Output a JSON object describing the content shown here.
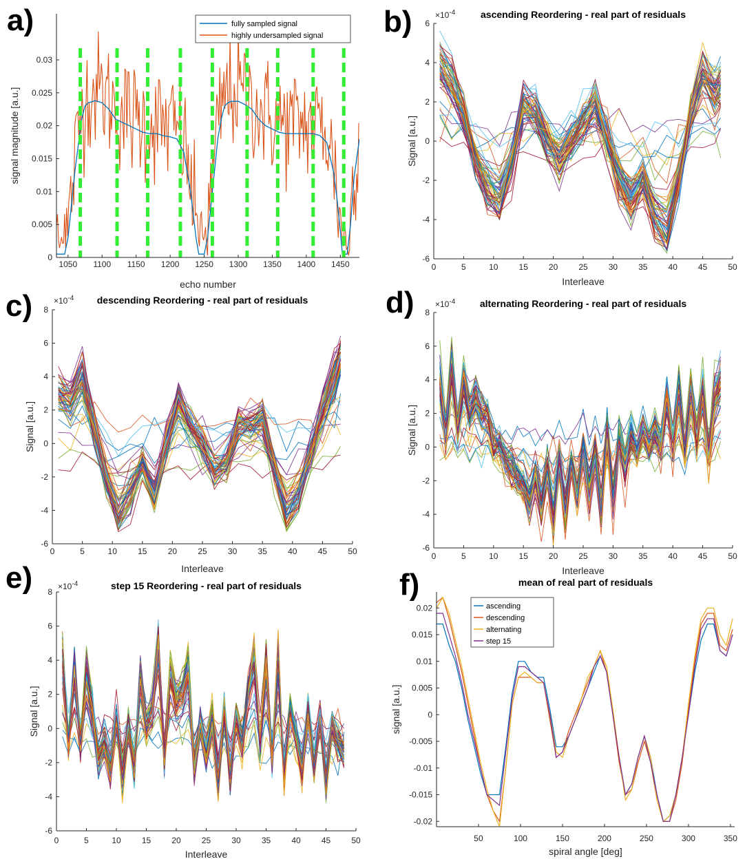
{
  "figure": {
    "panel_labels": [
      "a)",
      "b)",
      "c)",
      "d)",
      "e)",
      "f)"
    ]
  },
  "chart_data": [
    {
      "panel": "a)",
      "type": "line",
      "title": "",
      "xlabel": "echo number",
      "ylabel": "signal magnitude [a.u.]",
      "xlim": [
        1033,
        1478
      ],
      "ylim": [
        0,
        0.037
      ],
      "xticks": [
        1050,
        1100,
        1150,
        1200,
        1250,
        1300,
        1350,
        1400,
        1450
      ],
      "yticks": [
        0,
        0.005,
        0.01,
        0.015,
        0.02,
        0.025,
        0.03
      ],
      "ytick_labels": [
        "0",
        "0.005",
        "0.01",
        "0.015",
        "0.02",
        "0.025",
        "0.03"
      ],
      "legend": [
        "fully sampled signal",
        "highly undersampled signal"
      ],
      "legend_position": "top-right",
      "series": [
        {
          "name": "fully sampled signal",
          "color": "#0072BD",
          "x": [
            1033,
            1040,
            1045,
            1050,
            1055,
            1060,
            1065,
            1070,
            1075,
            1080,
            1090,
            1100,
            1110,
            1120,
            1130,
            1140,
            1150,
            1160,
            1170,
            1180,
            1190,
            1200,
            1210,
            1220,
            1230,
            1238,
            1242,
            1250,
            1255,
            1260,
            1265,
            1270,
            1275,
            1280,
            1285,
            1290,
            1300,
            1310,
            1320,
            1330,
            1340,
            1350,
            1360,
            1370,
            1380,
            1390,
            1400,
            1410,
            1420,
            1430,
            1440,
            1445,
            1450,
            1453,
            1460,
            1465,
            1470,
            1478
          ],
          "y": [
            0.0005,
            0.0005,
            0.0005,
            0.003,
            0.008,
            0.013,
            0.017,
            0.021,
            0.023,
            0.0235,
            0.0238,
            0.0235,
            0.0225,
            0.021,
            0.0205,
            0.02,
            0.0195,
            0.019,
            0.0188,
            0.0188,
            0.0185,
            0.0183,
            0.018,
            0.016,
            0.01,
            0.003,
            0.0005,
            0.0005,
            0.003,
            0.008,
            0.013,
            0.018,
            0.021,
            0.023,
            0.0235,
            0.0237,
            0.0237,
            0.0232,
            0.0225,
            0.021,
            0.02,
            0.0195,
            0.019,
            0.0188,
            0.0188,
            0.0188,
            0.0188,
            0.0188,
            0.0185,
            0.0175,
            0.013,
            0.009,
            0.004,
            0.0005,
            0.0005,
            0.005,
            0.012,
            0.018
          ]
        },
        {
          "name": "highly undersampled signal",
          "color": "#D95319",
          "noisy": true,
          "x": [
            1033,
            1478
          ],
          "y": [
            0.005,
            0.027
          ]
        }
      ],
      "vlines": [
        1068,
        1122,
        1167,
        1215,
        1262,
        1313,
        1358,
        1410,
        1455
      ],
      "vline_color": "#33EE33"
    },
    {
      "panel": "b)",
      "type": "line",
      "title": "ascending Reordering - real part of residuals",
      "xlabel": "Interleave",
      "ylabel": "Signal [a.u.]",
      "exponent": "×10^-4",
      "xlim": [
        0,
        50
      ],
      "ylim": [
        -6,
        6
      ],
      "xticks": [
        0,
        5,
        10,
        15,
        20,
        25,
        30,
        35,
        40,
        45,
        50
      ],
      "yticks": [
        -6,
        -4,
        -2,
        0,
        2,
        4,
        6
      ],
      "num_traces": 60,
      "template": {
        "x": [
          1,
          3,
          5,
          7,
          9,
          11,
          13,
          15,
          17,
          19,
          21,
          23,
          25,
          27,
          29,
          31,
          33,
          35,
          37,
          39,
          41,
          43,
          45,
          47,
          48
        ],
        "y": [
          4.0,
          3.0,
          1.5,
          -1.0,
          -2.5,
          -3.0,
          -1.0,
          2.0,
          1.5,
          0.0,
          -1.0,
          0.0,
          1.0,
          2.0,
          0.0,
          -2.0,
          -3.0,
          -2.0,
          -4.0,
          -4.5,
          -2.0,
          1.5,
          3.5,
          2.5,
          3.0
        ]
      }
    },
    {
      "panel": "c)",
      "type": "line",
      "title": "descending Reordering - real part of residuals",
      "xlabel": "Interleave",
      "ylabel": "Signal [a.u.]",
      "exponent": "×10^-4",
      "xlim": [
        0,
        50
      ],
      "ylim": [
        -6,
        8
      ],
      "xticks": [
        0,
        5,
        10,
        15,
        20,
        25,
        30,
        35,
        40,
        45,
        50
      ],
      "yticks": [
        -6,
        -4,
        -2,
        0,
        2,
        4,
        6,
        8
      ],
      "num_traces": 60,
      "template": {
        "x": [
          1,
          3,
          5,
          7,
          9,
          11,
          13,
          15,
          17,
          19,
          21,
          23,
          25,
          27,
          29,
          31,
          33,
          35,
          37,
          39,
          41,
          43,
          45,
          47,
          48
        ],
        "y": [
          3.0,
          2.5,
          4.0,
          1.0,
          -2.0,
          -4.0,
          -3.0,
          -1.0,
          -3.0,
          0.0,
          2.5,
          1.0,
          0.0,
          -1.5,
          -1.0,
          1.0,
          1.0,
          1.5,
          -1.5,
          -4.0,
          -3.0,
          -0.5,
          2.0,
          4.0,
          5.0
        ]
      }
    },
    {
      "panel": "d)",
      "type": "line",
      "title": "alternating Reordering - real part of residuals",
      "xlabel": "Interleave",
      "ylabel": "Signal [a.u.]",
      "exponent": "×10^-4",
      "xlim": [
        0,
        50
      ],
      "ylim": [
        -6,
        8
      ],
      "xticks": [
        0,
        5,
        10,
        15,
        20,
        25,
        30,
        35,
        40,
        45,
        50
      ],
      "yticks": [
        -6,
        -4,
        -2,
        0,
        2,
        4,
        6,
        8
      ],
      "num_traces": 60,
      "template": {
        "x": [
          1,
          2,
          3,
          4,
          5,
          6,
          7,
          8,
          9,
          10,
          11,
          12,
          13,
          14,
          15,
          16,
          17,
          18,
          19,
          20,
          21,
          22,
          23,
          24,
          25,
          26,
          27,
          28,
          29,
          30,
          31,
          32,
          33,
          34,
          35,
          36,
          37,
          38,
          39,
          40,
          41,
          42,
          43,
          44,
          45,
          46,
          47,
          48
        ],
        "y": [
          4.0,
          0.5,
          5.0,
          1.0,
          4.0,
          2.0,
          3.0,
          2.0,
          2.0,
          0.0,
          0.0,
          -1.0,
          -1.5,
          -2.0,
          -2.5,
          -3.5,
          -2.0,
          -4.0,
          -1.5,
          -4.5,
          -1.0,
          -4.0,
          -1.0,
          -3.0,
          -0.5,
          -3.0,
          -0.5,
          -4.0,
          1.0,
          -3.5,
          0.5,
          -1.5,
          0.5,
          -0.5,
          1.0,
          0.0,
          1.0,
          0.0,
          3.0,
          0.0,
          3.5,
          -0.5,
          3.5,
          0.5,
          3.5,
          -0.5,
          3.0,
          4.0
        ]
      }
    },
    {
      "panel": "e)",
      "type": "line",
      "title": "step 15 Reordering - real part of residuals",
      "xlabel": "Interleave",
      "ylabel": "Signal [a.u.]",
      "exponent": "×10^-4",
      "xlim": [
        0,
        50
      ],
      "ylim": [
        -6,
        8
      ],
      "xticks": [
        0,
        5,
        10,
        15,
        20,
        25,
        30,
        35,
        40,
        45,
        50
      ],
      "yticks": [
        -6,
        -4,
        -2,
        0,
        2,
        4,
        6,
        8
      ],
      "num_traces": 60,
      "template": {
        "x": [
          1,
          2,
          3,
          4,
          5,
          6,
          7,
          8,
          9,
          10,
          11,
          12,
          13,
          14,
          15,
          16,
          17,
          18,
          19,
          20,
          21,
          22,
          23,
          24,
          25,
          26,
          27,
          28,
          29,
          30,
          31,
          32,
          33,
          34,
          35,
          36,
          37,
          38,
          39,
          40,
          41,
          42,
          43,
          44,
          45,
          46,
          47,
          48
        ],
        "y": [
          4.0,
          -1.0,
          3.5,
          -1.0,
          3.0,
          1.0,
          -2.0,
          -1.0,
          -2.5,
          0.5,
          -3.0,
          0.0,
          -2.5,
          3.0,
          0.0,
          1.0,
          5.0,
          -2.0,
          3.0,
          1.5,
          2.0,
          3.5,
          -2.5,
          0.0,
          -1.5,
          0.5,
          -3.5,
          1.0,
          -3.0,
          0.5,
          -1.0,
          2.0,
          4.0,
          -1.0,
          4.0,
          -2.0,
          4.0,
          -3.0,
          1.0,
          -0.5,
          -2.5,
          1.0,
          -2.5,
          0.5,
          -3.5,
          0.0,
          -1.0,
          -1.5
        ]
      }
    },
    {
      "panel": "f)",
      "type": "line",
      "title": "mean of real part of residuals",
      "xlabel": "spiral angle [deg]",
      "ylabel": "signal [a.u.]",
      "xlim": [
        0,
        355
      ],
      "ylim": [
        -0.021,
        0.023
      ],
      "xticks": [
        50,
        100,
        150,
        200,
        250,
        300,
        350
      ],
      "yticks": [
        -0.02,
        -0.015,
        -0.01,
        -0.005,
        0,
        0.005,
        0.01,
        0.015,
        0.02
      ],
      "ytick_labels": [
        "-0.02",
        "-0.015",
        "-0.01",
        "-0.005",
        "0",
        "0.005",
        "0.01",
        "0.015",
        "0.02"
      ],
      "legend": [
        "ascending",
        "descending",
        "alternating",
        "step 15"
      ],
      "legend_position": "top-left",
      "x": [
        0,
        7.5,
        15,
        22.5,
        30,
        37.5,
        45,
        52.5,
        60,
        67.5,
        75,
        82.5,
        90,
        97.5,
        105,
        112.5,
        120,
        127.5,
        135,
        142.5,
        150,
        157.5,
        165,
        172.5,
        180,
        187.5,
        195,
        202.5,
        210,
        217.5,
        225,
        232.5,
        240,
        247.5,
        255,
        262.5,
        270,
        277.5,
        285,
        292.5,
        300,
        307.5,
        315,
        322.5,
        330,
        337.5,
        345,
        352.5
      ],
      "series": [
        {
          "name": "ascending",
          "color": "#0072BD",
          "values": [
            0.017,
            0.017,
            0.013,
            0.01,
            0.005,
            -0.001,
            -0.006,
            -0.011,
            -0.015,
            -0.015,
            -0.015,
            -0.006,
            0.004,
            0.01,
            0.01,
            0.008,
            0.007,
            0.007,
            0.001,
            -0.006,
            -0.006,
            -0.004,
            -0.001,
            0.002,
            0.005,
            0.008,
            0.011,
            0.008,
            0.0,
            -0.008,
            -0.015,
            -0.013,
            -0.008,
            -0.004,
            -0.008,
            -0.015,
            -0.02,
            -0.019,
            -0.015,
            -0.008,
            0.0,
            0.008,
            0.014,
            0.017,
            0.017,
            0.012,
            0.011,
            0.015
          ]
        },
        {
          "name": "descending",
          "color": "#D95319",
          "values": [
            0.021,
            0.022,
            0.018,
            0.013,
            0.008,
            0.002,
            -0.004,
            -0.01,
            -0.015,
            -0.018,
            -0.02,
            -0.01,
            0.002,
            0.007,
            0.007,
            0.007,
            0.006,
            0.006,
            -0.001,
            -0.008,
            -0.007,
            -0.003,
            0.0,
            0.003,
            0.006,
            0.009,
            0.012,
            0.008,
            0.0,
            -0.009,
            -0.015,
            -0.014,
            -0.009,
            -0.005,
            -0.009,
            -0.016,
            -0.02,
            -0.02,
            -0.016,
            -0.009,
            0.001,
            0.01,
            0.017,
            0.019,
            0.019,
            0.013,
            0.012,
            0.016
          ]
        },
        {
          "name": "alternating",
          "color": "#EDB120",
          "values": [
            0.02,
            0.022,
            0.019,
            0.014,
            0.009,
            0.003,
            -0.003,
            -0.009,
            -0.014,
            -0.018,
            -0.021,
            -0.01,
            0.002,
            0.007,
            0.008,
            0.007,
            0.006,
            0.006,
            0.0,
            -0.007,
            -0.008,
            -0.004,
            -0.001,
            0.003,
            0.007,
            0.009,
            0.012,
            0.009,
            0.001,
            -0.008,
            -0.016,
            -0.014,
            -0.008,
            -0.004,
            -0.008,
            -0.016,
            -0.02,
            -0.019,
            -0.015,
            -0.008,
            0.002,
            0.011,
            0.018,
            0.02,
            0.02,
            0.015,
            0.013,
            0.018
          ]
        },
        {
          "name": "step 15",
          "color": "#7E2F8E",
          "values": [
            0.019,
            0.019,
            0.015,
            0.011,
            0.006,
            0.0,
            -0.005,
            -0.01,
            -0.015,
            -0.016,
            -0.017,
            -0.007,
            0.003,
            0.009,
            0.009,
            0.008,
            0.007,
            0.006,
            0.0,
            -0.008,
            -0.007,
            -0.004,
            -0.001,
            0.002,
            0.005,
            0.009,
            0.011,
            0.008,
            0.0,
            -0.008,
            -0.015,
            -0.013,
            -0.008,
            -0.004,
            -0.009,
            -0.015,
            -0.02,
            -0.02,
            -0.015,
            -0.008,
            0.0,
            0.009,
            0.016,
            0.018,
            0.018,
            0.012,
            0.011,
            0.015
          ]
        }
      ]
    }
  ]
}
